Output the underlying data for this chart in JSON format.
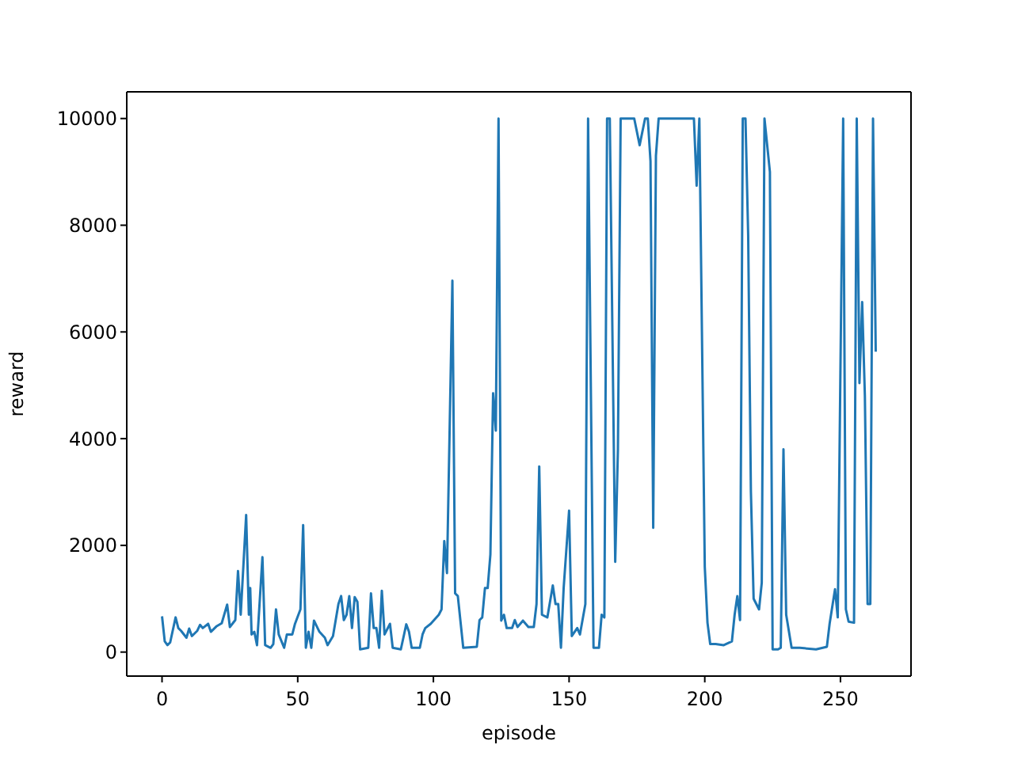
{
  "chart_data": {
    "type": "line",
    "xlabel": "episode",
    "ylabel": "reward",
    "x": [
      0,
      1,
      2,
      3,
      5,
      6,
      7,
      9,
      10,
      11,
      13,
      14,
      15,
      17,
      18,
      20,
      22,
      24,
      25,
      27,
      28,
      29,
      31,
      32,
      32.5,
      33,
      34,
      35,
      37,
      38,
      40,
      41,
      42,
      43,
      45,
      46,
      48,
      49,
      51,
      52,
      53,
      54,
      55,
      56,
      58,
      60,
      61,
      63,
      65,
      66,
      67,
      68,
      69,
      70,
      71,
      72,
      73,
      76,
      77,
      78,
      79,
      80,
      81,
      82,
      84,
      85,
      88,
      90,
      91,
      92,
      95,
      96,
      97,
      99,
      102,
      103,
      104,
      105,
      107,
      108,
      109,
      111,
      116,
      117,
      118,
      119,
      120,
      121,
      122,
      123,
      124,
      125,
      126,
      127,
      129,
      130,
      131,
      133,
      135,
      137,
      138,
      139,
      140,
      142,
      144,
      145,
      146,
      147,
      148,
      150,
      151,
      153,
      154,
      156,
      157,
      159,
      161,
      162,
      163,
      164,
      165,
      167,
      168,
      169,
      174,
      176,
      178,
      179,
      180,
      181,
      182,
      183,
      196,
      197,
      198,
      200,
      201,
      202,
      204,
      207,
      210,
      211,
      212,
      213,
      214,
      215,
      216,
      217,
      218,
      219,
      220,
      221,
      222,
      224,
      225,
      227,
      228,
      229,
      230,
      232,
      235,
      241,
      245,
      246,
      248,
      249,
      251,
      252,
      253,
      255,
      256,
      257,
      258,
      259,
      260,
      261,
      262,
      263
    ],
    "series": [
      {
        "color": "#1f77b4",
        "values": [
          670,
          200,
          130,
          180,
          650,
          450,
          400,
          270,
          440,
          300,
          400,
          510,
          450,
          530,
          380,
          480,
          540,
          890,
          470,
          600,
          1520,
          700,
          2570,
          700,
          1200,
          330,
          380,
          130,
          1780,
          130,
          80,
          150,
          800,
          330,
          80,
          330,
          330,
          530,
          800,
          2380,
          80,
          380,
          80,
          590,
          380,
          270,
          130,
          300,
          900,
          1050,
          600,
          700,
          1050,
          450,
          1030,
          940,
          50,
          80,
          1100,
          450,
          450,
          80,
          1150,
          330,
          530,
          80,
          50,
          520,
          380,
          80,
          80,
          330,
          450,
          530,
          700,
          800,
          2080,
          1480,
          6960,
          1100,
          1050,
          80,
          100,
          600,
          650,
          1200,
          1200,
          1830,
          4850,
          4150,
          10000,
          590,
          700,
          450,
          450,
          600,
          470,
          590,
          470,
          470,
          900,
          3480,
          700,
          650,
          1250,
          900,
          900,
          80,
          1200,
          2650,
          300,
          450,
          330,
          900,
          10000,
          80,
          80,
          700,
          650,
          10000,
          10000,
          1690,
          3800,
          10000,
          10000,
          9500,
          10000,
          10000,
          9200,
          2330,
          9300,
          10000,
          10000,
          8740,
          10000,
          1600,
          550,
          150,
          150,
          130,
          200,
          700,
          1050,
          600,
          10000,
          10000,
          7800,
          3000,
          1000,
          900,
          800,
          1300,
          10000,
          9000,
          50,
          50,
          80,
          3800,
          700,
          80,
          80,
          50,
          100,
          530,
          1180,
          650,
          10000,
          800,
          570,
          550,
          10000,
          5040,
          6560,
          4800,
          900,
          900,
          10000,
          5630
        ]
      }
    ],
    "xlim": [
      -13,
      276
    ],
    "ylim": [
      -450,
      10500
    ],
    "xticks": [
      0,
      50,
      100,
      150,
      200,
      250
    ],
    "yticks": [
      0,
      2000,
      4000,
      6000,
      8000,
      10000
    ],
    "grid": false,
    "legend": false,
    "marker": "none",
    "line_style": "solid"
  }
}
